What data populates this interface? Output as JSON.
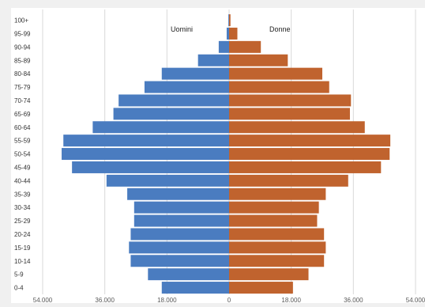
{
  "chart_data": {
    "type": "bar",
    "orientation": "horizontal-population-pyramid",
    "categories": [
      "0-4",
      "5-9",
      "10-14",
      "15-19",
      "20-24",
      "25-29",
      "30-34",
      "35-39",
      "40-44",
      "45-49",
      "50-54",
      "55-59",
      "60-64",
      "65-69",
      "70-74",
      "75-79",
      "80-84",
      "85-89",
      "90-94",
      "95-99",
      "100+"
    ],
    "series": [
      {
        "name": "Uomini",
        "color": "#4a7cc0",
        "values": [
          19500,
          23500,
          28500,
          29000,
          28500,
          27500,
          27500,
          29500,
          35500,
          45500,
          48500,
          48000,
          39500,
          33500,
          32000,
          24500,
          19500,
          9000,
          3000,
          700,
          200
        ]
      },
      {
        "name": "Donne",
        "color": "#c0632e",
        "values": [
          18500,
          23000,
          27500,
          28000,
          27500,
          25500,
          26000,
          28000,
          34500,
          44000,
          46500,
          46700,
          39300,
          35000,
          35300,
          29000,
          27000,
          17000,
          9200,
          2400,
          400
        ]
      }
    ],
    "x_ticks": [
      "54.000",
      "36.000",
      "18.000",
      "0",
      "18.000",
      "36.000",
      "54.000"
    ],
    "xlim": [
      -54000,
      54000
    ],
    "grid": "vertical",
    "legend": "labels-inside-top"
  }
}
